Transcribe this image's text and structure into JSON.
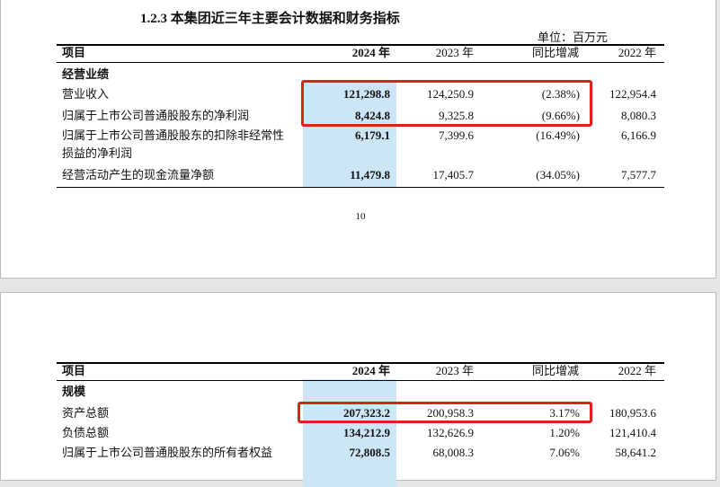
{
  "page_top": {
    "title": "1.2.3 本集团近三年主要会计数据和财务指标",
    "unit": "单位：百万元",
    "header": [
      "项目",
      "2024 年",
      "2023 年",
      "同比增减",
      "2022 年"
    ],
    "section": "经营业绩",
    "rows": [
      [
        [
          "营业收入"
        ],
        "121,298.8",
        "124,250.9",
        "(2.38%)",
        "122,954.4"
      ],
      [
        [
          "归属于上市公司普通股股东的净利润"
        ],
        "8,424.8",
        "9,325.8",
        "(9.66%)",
        "8,080.3"
      ],
      [
        [
          "归属于上市公司普通股股东的扣除非经常性",
          "损益的净利润"
        ],
        "6,179.1",
        "7,399.6",
        "(16.49%)",
        "6,166.9"
      ],
      [
        [
          "经营活动产生的现金流量净额"
        ],
        "11,479.8",
        "17,405.7",
        "(34.05%)",
        "7,577.7"
      ]
    ],
    "page_number": "10"
  },
  "page_bottom": {
    "header": [
      "项目",
      "2024 年",
      "2023 年",
      "同比增减",
      "2022 年"
    ],
    "section": "规模",
    "rows": [
      [
        [
          "资产总额"
        ],
        "207,323.2",
        "200,958.3",
        "3.17%",
        "180,953.6"
      ],
      [
        [
          "负债总额"
        ],
        "134,212.9",
        "132,626.9",
        "1.20%",
        "121,410.4"
      ],
      [
        [
          "归属于上市公司普通股股东的所有者权益"
        ],
        "72,808.5",
        "68,008.3",
        "7.06%",
        "58,641.2"
      ]
    ]
  }
}
